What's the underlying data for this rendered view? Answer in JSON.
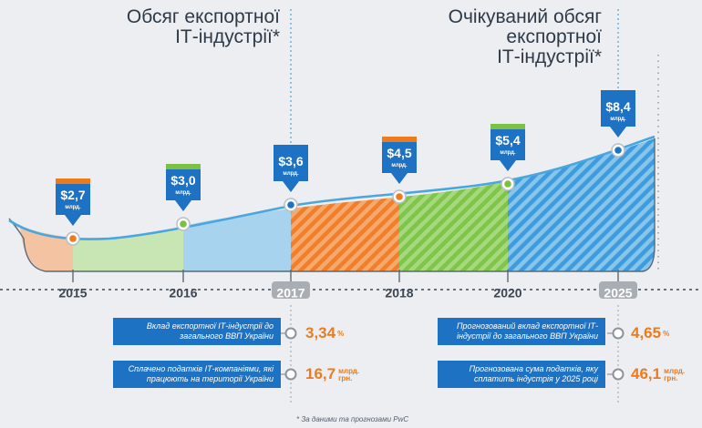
{
  "titles": {
    "left": [
      "Обсяг експортної",
      "ІТ-індустрії*"
    ],
    "right": [
      "Очікуваний обсяг",
      "експортної",
      "ІТ-індустрії*"
    ]
  },
  "colors": {
    "blue": "#1d72c4",
    "orange": "#ee7a1e",
    "green": "#7bc143",
    "light_blue": "#4aa6df",
    "timeline": "#3d4753",
    "highlight_label_bg": "#a9aeb5"
  },
  "chart_data": {
    "type": "area",
    "x": [
      "2015",
      "2016",
      "2017",
      "2018",
      "2020",
      "2025"
    ],
    "values": [
      2.7,
      3.0,
      3.6,
      4.5,
      5.4,
      8.4
    ],
    "value_labels": [
      "$2,7",
      "$3,0",
      "$3,6",
      "$4,5",
      "$5,4",
      "$8,4"
    ],
    "unit_label": "млрд.",
    "marker_colors": [
      "orange",
      "green",
      "blue",
      "orange",
      "green",
      "blue"
    ],
    "highlighted_years": [
      "2017",
      "2025"
    ]
  },
  "stats_left": [
    {
      "text": "Вклад експортної ІТ-індустрії до загального ВВП України",
      "value": "3,34",
      "unit": "%"
    },
    {
      "text": "Сплачено податків ІТ-компаніями, які працюють на території України",
      "value": "16,7",
      "unit_line1": "млрд.",
      "unit_line2": "грн."
    }
  ],
  "stats_right": [
    {
      "text": "Прогнозований вклад експортної ІТ-індустрії до загального ВВП України",
      "value": "4,65",
      "unit": "%"
    },
    {
      "text": "Прогнозована сума податків, яку сплатить індустрія у 2025 році",
      "value": "46,1",
      "unit_line1": "млрд.",
      "unit_line2": "грн."
    }
  ],
  "footnote": "* За даними та прогнозами PwC"
}
